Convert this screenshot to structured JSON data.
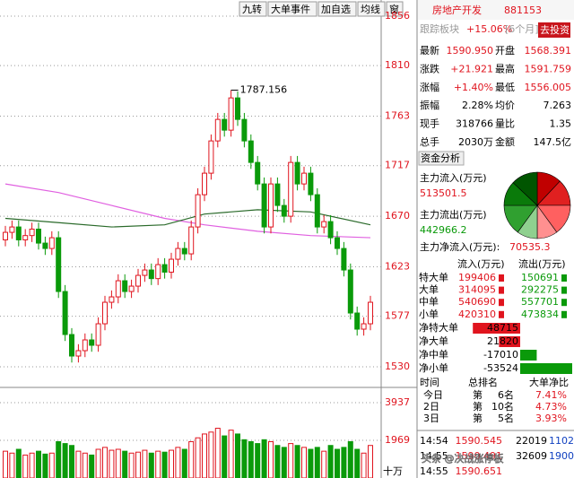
{
  "toolbar": [
    "九转",
    "大单事件",
    "加自选",
    "均线",
    "窗"
  ],
  "chart_data": {
    "type": "candlestick",
    "ylim": [
      1530,
      1856
    ],
    "yticks": [
      1856,
      1810,
      1763,
      1717,
      1670,
      1623,
      1577,
      1530
    ],
    "up_color": "#e0141e",
    "down_color": "#0a9a0a",
    "open": [
      1648,
      1655,
      1660,
      1648,
      1652,
      1658,
      1645,
      1640,
      1650,
      1600,
      1560,
      1540,
      1545,
      1555,
      1550,
      1570,
      1590,
      1595,
      1610,
      1600,
      1605,
      1615,
      1620,
      1612,
      1625,
      1618,
      1630,
      1640,
      1635,
      1660,
      1690,
      1710,
      1740,
      1760,
      1750,
      1780,
      1760,
      1740,
      1720,
      1700,
      1660,
      1700,
      1680,
      1670,
      1720,
      1700,
      1710,
      1690,
      1660,
      1665,
      1650,
      1640,
      1620,
      1580,
      1565,
      1570
    ],
    "high": [
      1661,
      1666,
      1666,
      1658,
      1664,
      1664,
      1651,
      1656,
      1656,
      1606,
      1566,
      1551,
      1561,
      1561,
      1576,
      1596,
      1601,
      1616,
      1616,
      1611,
      1621,
      1626,
      1626,
      1631,
      1631,
      1636,
      1646,
      1646,
      1666,
      1696,
      1716,
      1746,
      1766,
      1766,
      1787.156,
      1786,
      1766,
      1746,
      1726,
      1706,
      1706,
      1706,
      1686,
      1726,
      1726,
      1716,
      1716,
      1696,
      1671,
      1671,
      1656,
      1646,
      1626,
      1586,
      1576,
      1596
    ],
    "low": [
      1642,
      1649,
      1642,
      1642,
      1646,
      1639,
      1634,
      1634,
      1594,
      1554,
      1534,
      1534,
      1539,
      1544,
      1544,
      1564,
      1584,
      1589,
      1594,
      1594,
      1599,
      1609,
      1606,
      1606,
      1612,
      1612,
      1624,
      1629,
      1629,
      1654,
      1684,
      1704,
      1734,
      1744,
      1744,
      1754,
      1734,
      1714,
      1694,
      1654,
      1654,
      1674,
      1664,
      1664,
      1694,
      1694,
      1684,
      1654,
      1654,
      1644,
      1634,
      1614,
      1574,
      1559,
      1559,
      1564
    ],
    "close": [
      1655,
      1660,
      1648,
      1652,
      1658,
      1645,
      1640,
      1650,
      1600,
      1560,
      1540,
      1545,
      1555,
      1550,
      1570,
      1590,
      1595,
      1610,
      1600,
      1605,
      1615,
      1620,
      1612,
      1625,
      1618,
      1630,
      1640,
      1635,
      1660,
      1690,
      1710,
      1740,
      1760,
      1750,
      1780,
      1760,
      1740,
      1720,
      1700,
      1660,
      1700,
      1680,
      1670,
      1720,
      1700,
      1710,
      1690,
      1660,
      1665,
      1650,
      1640,
      1620,
      1580,
      1565,
      1570,
      1590
    ],
    "annotations": [
      "1787.156"
    ],
    "moving_averages": [
      {
        "color": "#e060e0",
        "x": [
          0,
          8,
          16,
          24,
          30,
          38,
          46,
          55
        ],
        "values": [
          1700,
          1692,
          1680,
          1668,
          1662,
          1656,
          1652,
          1650
        ]
      },
      {
        "color": "#2a6a2a",
        "x": [
          0,
          8,
          16,
          24,
          30,
          38,
          46,
          55
        ],
        "values": [
          1668,
          1664,
          1660,
          1662,
          1672,
          1676,
          1674,
          1662
        ]
      }
    ],
    "volume": {
      "ylim": [
        0,
        3937
      ],
      "yticks": [
        3937,
        1969
      ],
      "unit": "十万",
      "values": [
        1400,
        1300,
        1500,
        1200,
        1300,
        1400,
        1250,
        1300,
        1900,
        1800,
        1700,
        1400,
        1300,
        1200,
        1500,
        1600,
        1450,
        1500,
        1400,
        1300,
        1350,
        1450,
        1300,
        1400,
        1350,
        1450,
        1600,
        1500,
        1900,
        2100,
        2300,
        2400,
        2600,
        2200,
        2500,
        2300,
        2000,
        1900,
        1800,
        2000,
        1900,
        1700,
        1600,
        1800,
        1700,
        1600,
        1500,
        1600,
        1400,
        1700,
        1500,
        1600,
        1900,
        1500,
        1300,
        1700
      ]
    }
  },
  "header": {
    "title": "房地产开发",
    "code": "881153",
    "track": "跟踪板块",
    "track_change": "+15.06%",
    "track_period": "[6个月]",
    "button": "去投资"
  },
  "quote": [
    [
      "最新",
      "1590.950",
      "开盘",
      "1568.391"
    ],
    [
      "涨跌",
      "+21.921",
      "最高",
      "1591.759"
    ],
    [
      "涨幅",
      "+1.40%",
      "最低",
      "1556.005"
    ],
    [
      "振幅",
      "2.28%",
      "均价",
      "7.263"
    ],
    [
      "现手",
      "318766",
      "量比",
      "1.35"
    ],
    [
      "总手",
      "2030万",
      "金额",
      "147.5亿"
    ]
  ],
  "funds": {
    "tab": "资金分析",
    "inflow_label": "主力流入(万元)",
    "inflow": 513501.5,
    "outflow_label": "主力流出(万元)",
    "outflow": 442966.2,
    "net_label": "主力净流入(万元):",
    "net": 70535.3,
    "pie": {
      "values": [
        12,
        13,
        15,
        10,
        10,
        15,
        12,
        13
      ],
      "colors": [
        "#c00000",
        "#e02020",
        "#ff6060",
        "#ff9090",
        "#8fd08f",
        "#30a030",
        "#0a7a0a",
        "#005500"
      ]
    }
  },
  "flows": {
    "header": [
      "流入(万元)",
      "流出(万元)"
    ],
    "rows": [
      [
        "特大单",
        199406,
        150691
      ],
      [
        "大单",
        314095,
        292275
      ],
      [
        "中单",
        540690,
        557701
      ],
      [
        "小单",
        420310,
        473834
      ]
    ]
  },
  "net_flows": [
    [
      "净特大单",
      48715
    ],
    [
      "净大单",
      21820
    ],
    [
      "净中单",
      -17010
    ],
    [
      "净小单",
      -53524
    ]
  ],
  "ranking": {
    "header": [
      "时间",
      "总排名",
      "大单净比"
    ],
    "rows": [
      [
        "今日",
        "第",
        "6名",
        "7.41%"
      ],
      [
        "2日",
        "第",
        "10名",
        "4.73%"
      ],
      [
        "3日",
        "第",
        "5名",
        "3.93%"
      ]
    ]
  },
  "trades": [
    [
      "14:54",
      "1590.545",
      "22019",
      "1102"
    ],
    [
      "14:55",
      "1590.491",
      "32609",
      "1900"
    ],
    [
      "14:55",
      "1590.651"
    ]
  ],
  "watermark": "头条 @决战涨停板"
}
